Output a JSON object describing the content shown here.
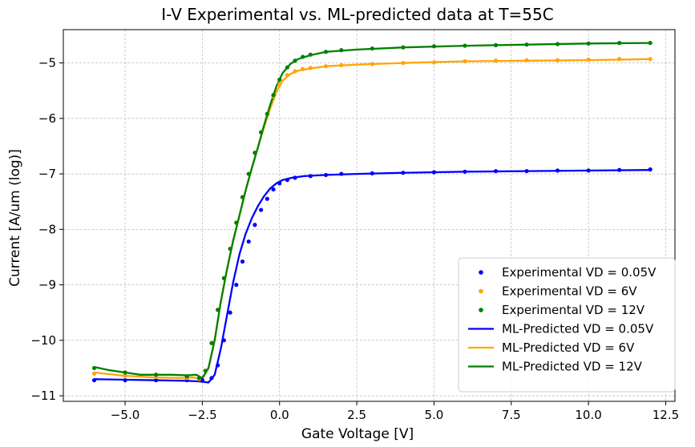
{
  "chart_data": {
    "type": "scatter+line",
    "title": "I-V Experimental vs. ML-predicted data at T=55C",
    "xlabel": "Gate Voltage [V]",
    "ylabel": "Current [A/um (log)]",
    "xlim": [
      -7.0,
      12.8
    ],
    "ylim": [
      -11.1,
      -4.4
    ],
    "x_ticks": [
      -5.0,
      -2.5,
      0.0,
      2.5,
      5.0,
      7.5,
      10.0,
      12.5
    ],
    "x_tick_labels": [
      "−5.0",
      "−2.5",
      "0.0",
      "2.5",
      "5.0",
      "7.5",
      "10.0",
      "12.5"
    ],
    "y_ticks": [
      -11,
      -10,
      -9,
      -8,
      -7,
      -6,
      -5
    ],
    "y_tick_labels": [
      "−11",
      "−10",
      "−9",
      "−8",
      "−7",
      "−6",
      "−5"
    ],
    "grid": true,
    "legend_position": "lower-right",
    "experimental_series": [
      {
        "name": "Experimental VD = 0.05V",
        "color": "#0000ff",
        "x": [
          -6.0,
          -5.0,
          -4.0,
          -3.0,
          -2.5,
          -2.2,
          -2.0,
          -1.8,
          -1.6,
          -1.4,
          -1.2,
          -1.0,
          -0.8,
          -0.6,
          -0.4,
          -0.2,
          0.0,
          0.25,
          0.5,
          1.0,
          1.5,
          2.0,
          3.0,
          4.0,
          5.0,
          6.0,
          7.0,
          8.0,
          9.0,
          10.0,
          11.0,
          12.0
        ],
        "y": [
          -10.72,
          -10.72,
          -10.72,
          -10.72,
          -10.72,
          -10.68,
          -10.45,
          -10.0,
          -9.5,
          -9.0,
          -8.58,
          -8.22,
          -7.92,
          -7.65,
          -7.45,
          -7.28,
          -7.17,
          -7.11,
          -7.07,
          -7.04,
          -7.02,
          -7.0,
          -6.99,
          -6.98,
          -6.97,
          -6.96,
          -6.95,
          -6.95,
          -6.94,
          -6.94,
          -6.93,
          -6.92
        ]
      },
      {
        "name": "Experimental VD = 6V",
        "color": "#ffa500",
        "x": [
          -6.0,
          -5.0,
          -4.0,
          -3.0,
          -2.6,
          -2.4,
          -2.2,
          -2.0,
          -1.8,
          -1.6,
          -1.4,
          -1.2,
          -1.0,
          -0.8,
          -0.6,
          -0.4,
          -0.2,
          0.0,
          0.25,
          0.5,
          0.75,
          1.0,
          1.5,
          2.0,
          3.0,
          4.0,
          5.0,
          6.0,
          7.0,
          8.0,
          9.0,
          10.0,
          11.0,
          12.0
        ],
        "y": [
          -10.6,
          -10.64,
          -10.66,
          -10.68,
          -10.7,
          -10.55,
          -10.05,
          -9.45,
          -8.88,
          -8.35,
          -7.88,
          -7.42,
          -7.0,
          -6.62,
          -6.25,
          -5.92,
          -5.6,
          -5.38,
          -5.22,
          -5.15,
          -5.11,
          -5.09,
          -5.06,
          -5.04,
          -5.02,
          -5.0,
          -4.99,
          -4.97,
          -4.96,
          -4.95,
          -4.95,
          -4.94,
          -4.93,
          -4.93
        ]
      },
      {
        "name": "Experimental VD = 12V",
        "color": "#008000",
        "x": [
          -6.0,
          -5.0,
          -4.0,
          -3.0,
          -2.6,
          -2.4,
          -2.2,
          -2.0,
          -1.8,
          -1.6,
          -1.4,
          -1.2,
          -1.0,
          -0.8,
          -0.6,
          -0.4,
          -0.2,
          0.0,
          0.25,
          0.5,
          0.75,
          1.0,
          1.5,
          2.0,
          3.0,
          4.0,
          5.0,
          6.0,
          7.0,
          8.0,
          9.0,
          10.0,
          11.0,
          12.0
        ],
        "y": [
          -10.5,
          -10.58,
          -10.62,
          -10.65,
          -10.68,
          -10.55,
          -10.05,
          -9.45,
          -8.88,
          -8.35,
          -7.88,
          -7.42,
          -7.0,
          -6.62,
          -6.25,
          -5.92,
          -5.58,
          -5.3,
          -5.08,
          -4.96,
          -4.89,
          -4.85,
          -4.8,
          -4.77,
          -4.74,
          -4.72,
          -4.7,
          -4.69,
          -4.68,
          -4.67,
          -4.66,
          -4.65,
          -4.64,
          -4.64
        ]
      }
    ],
    "predicted_series": [
      {
        "name": "ML-Predicted VD = 0.05V",
        "color": "#0000ff",
        "x": [
          -6.0,
          -5.0,
          -4.0,
          -3.0,
          -2.6,
          -2.3,
          -2.1,
          -1.9,
          -1.7,
          -1.5,
          -1.3,
          -1.1,
          -0.9,
          -0.7,
          -0.5,
          -0.3,
          -0.1,
          0.1,
          0.4,
          0.8,
          1.5,
          2.5,
          4.0,
          6.0,
          8.0,
          10.0,
          12.0
        ],
        "y": [
          -10.7,
          -10.71,
          -10.72,
          -10.73,
          -10.74,
          -10.76,
          -10.62,
          -10.15,
          -9.55,
          -8.95,
          -8.45,
          -8.08,
          -7.8,
          -7.58,
          -7.4,
          -7.26,
          -7.17,
          -7.11,
          -7.07,
          -7.04,
          -7.02,
          -7.0,
          -6.98,
          -6.96,
          -6.95,
          -6.94,
          -6.93
        ]
      },
      {
        "name": "ML-Predicted VD = 6V",
        "color": "#ffa500",
        "x": [
          -6.0,
          -5.0,
          -4.0,
          -3.2,
          -2.8,
          -2.5,
          -2.3,
          -2.1,
          -1.9,
          -1.7,
          -1.5,
          -1.3,
          -1.1,
          -0.9,
          -0.7,
          -0.5,
          -0.3,
          -0.1,
          0.1,
          0.35,
          0.6,
          1.0,
          1.5,
          2.5,
          4.0,
          6.0,
          8.0,
          10.0,
          12.0
        ],
        "y": [
          -10.58,
          -10.64,
          -10.67,
          -10.68,
          -10.67,
          -10.7,
          -10.5,
          -10.0,
          -9.3,
          -8.72,
          -8.2,
          -7.75,
          -7.3,
          -6.9,
          -6.52,
          -6.15,
          -5.82,
          -5.52,
          -5.32,
          -5.2,
          -5.14,
          -5.1,
          -5.06,
          -5.03,
          -5.0,
          -4.97,
          -4.96,
          -4.95,
          -4.93
        ]
      },
      {
        "name": "ML-Predicted VD = 12V",
        "color": "#008000",
        "x": [
          -6.0,
          -5.5,
          -5.0,
          -4.5,
          -4.0,
          -3.5,
          -3.0,
          -2.7,
          -2.5,
          -2.3,
          -2.1,
          -1.9,
          -1.7,
          -1.5,
          -1.3,
          -1.1,
          -0.9,
          -0.7,
          -0.5,
          -0.3,
          -0.1,
          0.1,
          0.35,
          0.6,
          1.0,
          1.5,
          2.5,
          4.0,
          6.0,
          8.0,
          10.0,
          12.0
        ],
        "y": [
          -10.48,
          -10.54,
          -10.58,
          -10.62,
          -10.62,
          -10.62,
          -10.63,
          -10.62,
          -10.68,
          -10.5,
          -10.0,
          -9.3,
          -8.72,
          -8.2,
          -7.75,
          -7.3,
          -6.9,
          -6.52,
          -6.12,
          -5.75,
          -5.42,
          -5.18,
          -5.02,
          -4.93,
          -4.86,
          -4.8,
          -4.76,
          -4.72,
          -4.69,
          -4.67,
          -4.65,
          -4.64
        ]
      }
    ]
  }
}
